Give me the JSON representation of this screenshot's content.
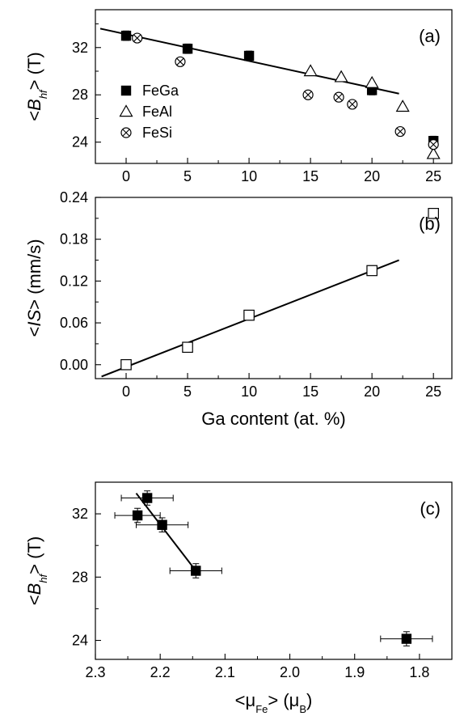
{
  "chart_data": [
    {
      "panel": "a",
      "type": "scatter",
      "label": "(a)",
      "ylabel": {
        "prefix": "<",
        "var": "B",
        "sub": "hf",
        "suffix": "> (T)"
      },
      "xlim": [
        -2.5,
        26.5
      ],
      "ylim": [
        22.2,
        35.2
      ],
      "xticks": [
        "0",
        "5",
        "10",
        "15",
        "20",
        "25"
      ],
      "yticks": [
        "24",
        "28",
        "32"
      ],
      "grid": false,
      "legend_position": "left",
      "series": [
        {
          "name": "FeGa",
          "marker": "filled-square",
          "color": "#000000",
          "x": [
            0,
            5,
            10,
            20,
            25
          ],
          "y": [
            33.0,
            31.9,
            31.3,
            28.4,
            24.1
          ],
          "err": [
            0.4,
            0.4,
            0.4,
            0.4,
            0.4
          ]
        },
        {
          "name": "FeAl",
          "marker": "open-triangle",
          "color": "#000000",
          "x": [
            15,
            17.5,
            20,
            22.5,
            25
          ],
          "y": [
            30.0,
            29.5,
            29.0,
            27.0,
            23.0
          ]
        },
        {
          "name": "FeSi",
          "marker": "circle-cross",
          "color": "#000000",
          "x": [
            0.9,
            4.4,
            14.8,
            17.3,
            18.4,
            22.3,
            25
          ],
          "y": [
            32.8,
            30.8,
            28.0,
            27.8,
            27.2,
            24.9,
            23.8
          ]
        }
      ],
      "fit_line": {
        "x": [
          -2.1,
          22.2
        ],
        "y": [
          33.6,
          28.1
        ]
      }
    },
    {
      "panel": "b",
      "type": "scatter",
      "label": "(b)",
      "ylabel": {
        "prefix": "<",
        "var": "IS",
        "suffix": "> (mm/s)"
      },
      "xlabel": "Ga content (at. %)",
      "xlim": [
        -2.5,
        26.5
      ],
      "ylim": [
        -0.02,
        0.24
      ],
      "xticks": [
        "0",
        "5",
        "10",
        "15",
        "20",
        "25"
      ],
      "yticks": [
        "0.00",
        "0.06",
        "0.12",
        "0.18",
        "0.24"
      ],
      "grid": false,
      "series": [
        {
          "name": "",
          "marker": "open-square",
          "color": "#000000",
          "x": [
            0,
            5,
            10,
            20,
            25
          ],
          "y": [
            0.0,
            0.025,
            0.071,
            0.135,
            0.217
          ],
          "err": [
            0.007,
            0.007,
            0.007,
            0.007,
            0.007
          ]
        }
      ],
      "fit_line": {
        "x": [
          -2.0,
          22.2
        ],
        "y": [
          -0.017,
          0.15
        ]
      }
    },
    {
      "panel": "c",
      "type": "scatter",
      "label": "(c)",
      "ylabel": {
        "prefix": "<",
        "var": "B",
        "sub": "hf",
        "suffix": "> (T)"
      },
      "xlabel": {
        "prefix": "<",
        "var": "μ",
        "sub": "Fe",
        "suffix": "> (μ",
        "sub2": "B",
        "suffix2": ")"
      },
      "xlim": [
        2.3,
        1.75
      ],
      "ylim": [
        22.8,
        34.0
      ],
      "xticks": [
        "2.3",
        "2.2",
        "2.1",
        "2.0",
        "1.9",
        "1.8"
      ],
      "yticks": [
        "24",
        "28",
        "32"
      ],
      "grid": false,
      "series": [
        {
          "name": "",
          "marker": "filled-square",
          "color": "#000000",
          "x": [
            2.22,
            2.235,
            2.197,
            2.145,
            1.82
          ],
          "y": [
            33.0,
            31.9,
            31.3,
            28.4,
            24.1
          ],
          "xerr": [
            0.04,
            0.035,
            0.04,
            0.04,
            0.04
          ],
          "yerr": [
            0.45,
            0.45,
            0.45,
            0.45,
            0.45
          ]
        }
      ],
      "fit_line": {
        "x": [
          2.237,
          2.145
        ],
        "y": [
          33.3,
          28.4
        ]
      }
    }
  ]
}
